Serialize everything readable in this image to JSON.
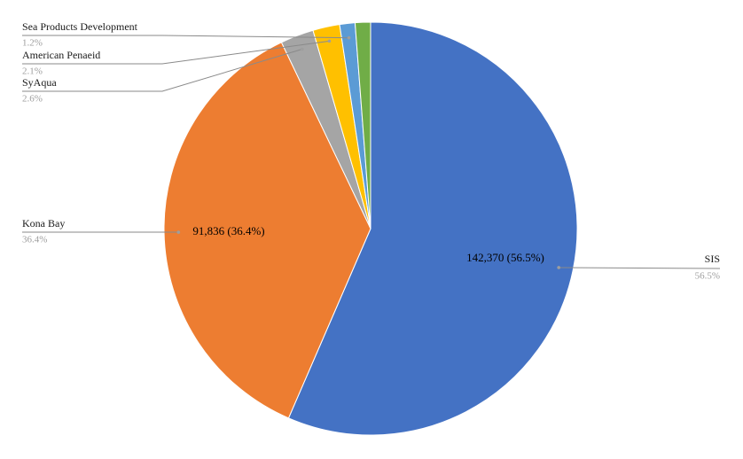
{
  "chart_data": {
    "type": "pie",
    "categories": [
      "SIS",
      "Kona Bay",
      "SyAqua",
      "American Penaeid",
      "Sea Products Development",
      null
    ],
    "values": [
      56.5,
      36.4,
      2.6,
      2.1,
      1.2,
      1.2
    ],
    "value_labels": [
      "56.5%",
      "36.4%",
      "2.6%",
      "2.1%",
      "1.2%",
      null
    ],
    "inner_labels": [
      "142,370 (56.5%)",
      "91,836 (36.4%)"
    ],
    "colors": [
      "#4472c4",
      "#ed7d31",
      "#a5a5a5",
      "#ffc000",
      "#5b9bd5",
      "#70ad47"
    ]
  }
}
